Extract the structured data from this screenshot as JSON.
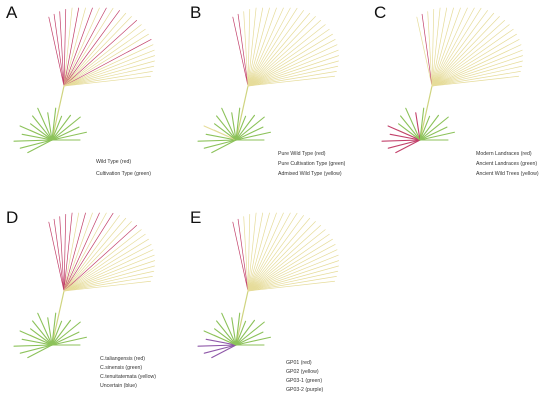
{
  "colors": {
    "red": "#c2406a",
    "yellow": "#e6dc9a",
    "green": "#8cc25a",
    "purple": "#8e57a8",
    "stem": "#cfd47f"
  },
  "panels": [
    {
      "letter": "A",
      "legend": [
        "Wild Type (red)",
        "Cultivation Type (green)"
      ],
      "top_branches": [
        "red",
        "red",
        "red",
        "red",
        "yellow",
        "red",
        "yellow",
        "red",
        "yellow",
        "red",
        "yellow",
        "red",
        "yellow",
        "yellow",
        "red",
        "yellow",
        "yellow",
        "yellow",
        "red",
        "yellow",
        "yellow",
        "yellow",
        "yellow",
        "yellow",
        "yellow",
        "yellow"
      ],
      "lower_branches": [
        "green",
        "green",
        "green",
        "green",
        "green",
        "green",
        "green",
        "green",
        "green",
        "green",
        "green",
        "green",
        "green",
        "green",
        "green",
        "green"
      ]
    },
    {
      "letter": "B",
      "legend": [
        "Pure Wild Type (red)",
        "Pure Cultivation Type (green)",
        "Admixed Wild Type (yellow)"
      ],
      "top_branches": [
        "red",
        "red",
        "yellow",
        "yellow",
        "yellow",
        "yellow",
        "yellow",
        "yellow",
        "yellow",
        "yellow",
        "yellow",
        "yellow",
        "yellow",
        "yellow",
        "yellow",
        "yellow",
        "yellow",
        "yellow",
        "yellow",
        "yellow",
        "yellow",
        "yellow",
        "yellow",
        "yellow",
        "yellow",
        "yellow"
      ],
      "lower_branches": [
        "green",
        "green",
        "green",
        "green",
        "yellow",
        "green",
        "green",
        "green",
        "green",
        "green",
        "green",
        "green",
        "green",
        "green",
        "green",
        "green"
      ]
    },
    {
      "letter": "C",
      "legend": [
        "Modern Landraces (red)",
        "Ancient Landraces (green)",
        "Ancient Wild Trees (yellow)"
      ],
      "top_branches": [
        "yellow",
        "red",
        "yellow",
        "yellow",
        "yellow",
        "yellow",
        "yellow",
        "yellow",
        "yellow",
        "yellow",
        "yellow",
        "yellow",
        "yellow",
        "yellow",
        "yellow",
        "yellow",
        "yellow",
        "yellow",
        "yellow",
        "yellow",
        "yellow",
        "yellow",
        "yellow",
        "yellow",
        "yellow",
        "yellow"
      ],
      "lower_branches": [
        "red",
        "red",
        "red",
        "red",
        "red",
        "green",
        "green",
        "green",
        "red",
        "green",
        "green",
        "green",
        "green",
        "green",
        "green",
        "green"
      ]
    },
    {
      "letter": "D",
      "legend": [
        "C.taliangensis (red)",
        "C.sinensis (green)",
        "C.tenuitatemata (yellow)",
        "Uncertain (blue)"
      ],
      "top_branches": [
        "red",
        "red",
        "red",
        "red",
        "red",
        "yellow",
        "red",
        "yellow",
        "red",
        "yellow",
        "red",
        "yellow",
        "yellow",
        "yellow",
        "red",
        "yellow",
        "yellow",
        "yellow",
        "yellow",
        "yellow",
        "yellow",
        "yellow",
        "yellow",
        "yellow",
        "yellow",
        "yellow"
      ],
      "lower_branches": [
        "green",
        "green",
        "green",
        "green",
        "green",
        "green",
        "green",
        "green",
        "green",
        "green",
        "green",
        "green",
        "green",
        "green",
        "green",
        "green"
      ]
    },
    {
      "letter": "E",
      "legend": [
        "GP01 (red)",
        "GP02 (yellow)",
        "GP03-1 (green)",
        "GP03-2 (purple)"
      ],
      "top_branches": [
        "red",
        "red",
        "yellow",
        "yellow",
        "yellow",
        "yellow",
        "yellow",
        "yellow",
        "yellow",
        "yellow",
        "yellow",
        "yellow",
        "yellow",
        "yellow",
        "yellow",
        "yellow",
        "yellow",
        "yellow",
        "yellow",
        "yellow",
        "yellow",
        "yellow",
        "yellow",
        "yellow",
        "yellow",
        "yellow"
      ],
      "lower_branches": [
        "purple",
        "purple",
        "purple",
        "purple",
        "green",
        "green",
        "green",
        "green",
        "green",
        "green",
        "green",
        "green",
        "green",
        "green",
        "green",
        "green"
      ]
    }
  ]
}
